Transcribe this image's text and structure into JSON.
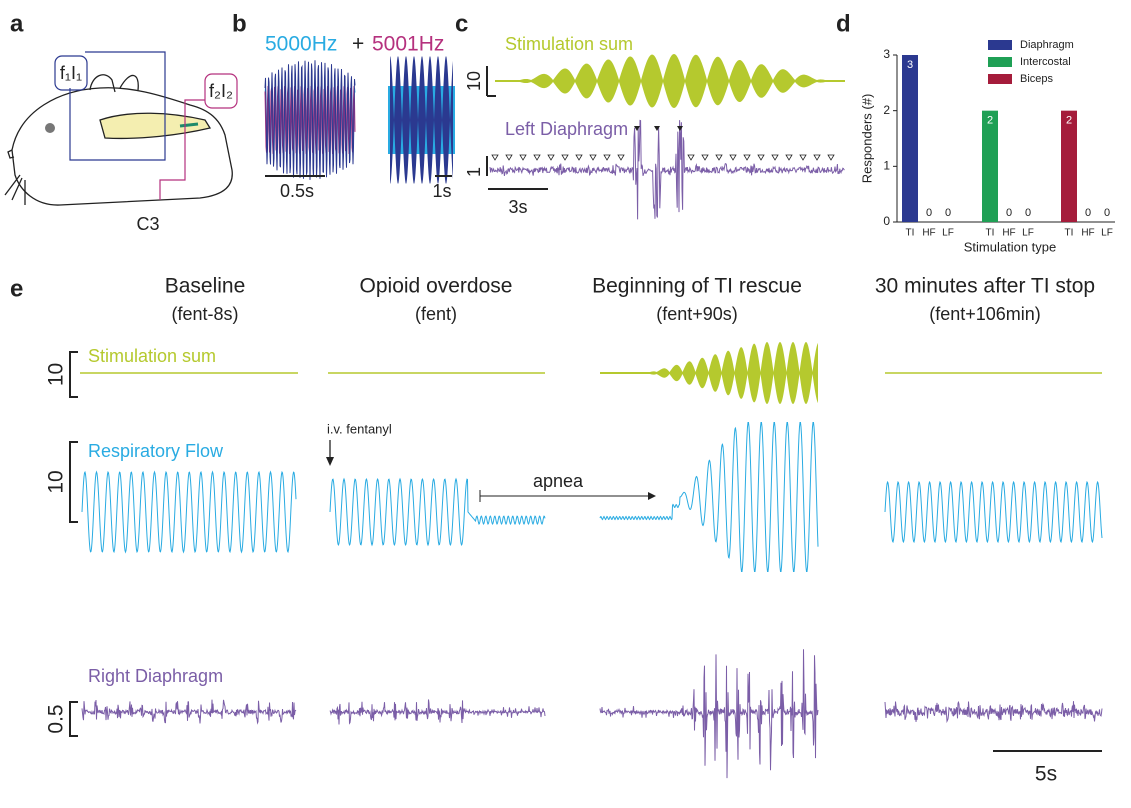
{
  "panels": {
    "a": {
      "label": "a",
      "electrode1": "f₁I₁",
      "electrode2": "f₂I₂",
      "site": "C3"
    },
    "b": {
      "label": "b",
      "freq1": "5000Hz",
      "plus": "+",
      "freq2": "5001Hz",
      "scale_left": "0.5s",
      "scale_right": "1s"
    },
    "c": {
      "label": "c",
      "trace1": "Stimulation sum",
      "scale1": "10",
      "trace2": "Left Diaphragm",
      "scale2": "1",
      "time_scale": "3s"
    },
    "d": {
      "label": "d"
    },
    "e": {
      "label": "e",
      "columns": [
        {
          "title": "Baseline",
          "subtitle": "(fent-8s)"
        },
        {
          "title": "Opioid overdose",
          "subtitle": "(fent)"
        },
        {
          "title": "Beginning of TI rescue",
          "subtitle": "(fent+90s)"
        },
        {
          "title": "30 minutes after TI stop",
          "subtitle": "(fent+106min)"
        }
      ],
      "rows": [
        "Stimulation sum",
        "Respiratory Flow",
        "Right Diaphragm"
      ],
      "scales": [
        "10",
        "10",
        "0.5"
      ],
      "injection": "i.v. fentanyl",
      "apnea": "apnea",
      "time_scale": "5s"
    }
  },
  "chart_data": {
    "type": "bar",
    "y_label": "Responders (#)",
    "x_label": "Stimulation type",
    "categories": [
      "TI",
      "HF",
      "LF"
    ],
    "series": [
      {
        "name": "Diaphragm",
        "color": "#2b3990",
        "values": [
          3,
          0,
          0
        ]
      },
      {
        "name": "Intercostal",
        "color": "#1fa055",
        "values": [
          2,
          0,
          0
        ]
      },
      {
        "name": "Biceps",
        "color": "#a51c3b",
        "values": [
          2,
          0,
          0
        ]
      }
    ],
    "ylim": [
      0,
      3
    ],
    "yticks": [
      0,
      1,
      2,
      3
    ],
    "legend": "upper right"
  }
}
